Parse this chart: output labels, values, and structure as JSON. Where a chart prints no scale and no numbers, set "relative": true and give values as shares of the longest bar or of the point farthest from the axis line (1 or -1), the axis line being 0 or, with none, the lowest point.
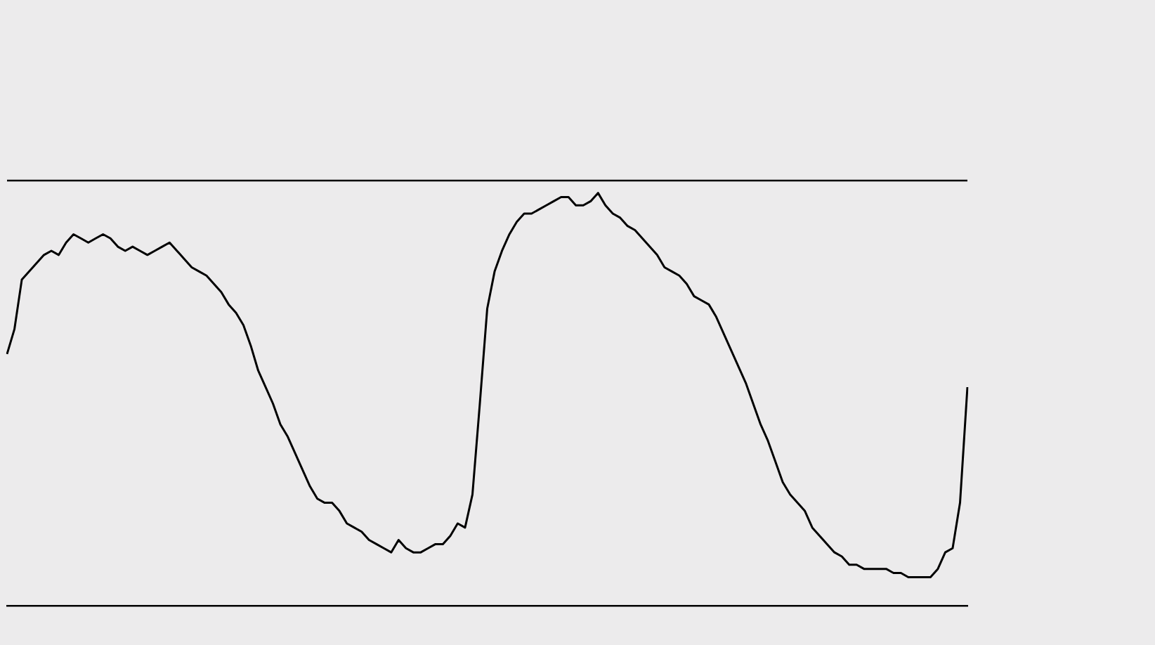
{
  "chart_data": {
    "type": "line",
    "relative": true,
    "categories": [
      null,
      null,
      null,
      null,
      null,
      null,
      null,
      null,
      null,
      null,
      null,
      null,
      null,
      null,
      null,
      null,
      null,
      null,
      null,
      null,
      null,
      null,
      null,
      null,
      null,
      null,
      null,
      null,
      null,
      null,
      null,
      null,
      null,
      null,
      null,
      null,
      null,
      null,
      null,
      null,
      null,
      null,
      null,
      null,
      null,
      null,
      null,
      null,
      null,
      null,
      null,
      null,
      null,
      null,
      null,
      null,
      null,
      null,
      null,
      null,
      null,
      null,
      null,
      null,
      null,
      null,
      null,
      null,
      null,
      null,
      null,
      null,
      null,
      null,
      null,
      null,
      null,
      null,
      null,
      null,
      null,
      null,
      null,
      null,
      null,
      null,
      null,
      null,
      null,
      null,
      null,
      null,
      null,
      null,
      null,
      null,
      null,
      null,
      null,
      null,
      null,
      null,
      null,
      null,
      null,
      null,
      null,
      null,
      null,
      null,
      null,
      null,
      null,
      null,
      null,
      null,
      null,
      null,
      null,
      null,
      null,
      null,
      null,
      null,
      null,
      null,
      null,
      null,
      null,
      null,
      null
    ],
    "series": [
      {
        "color": "#000000",
        "values": [
          0.61,
          0.67,
          0.79,
          0.81,
          0.83,
          0.85,
          0.86,
          0.85,
          0.88,
          0.9,
          0.89,
          0.88,
          0.89,
          0.9,
          0.89,
          0.87,
          0.86,
          0.87,
          0.86,
          0.85,
          0.86,
          0.87,
          0.88,
          0.86,
          0.84,
          0.82,
          0.81,
          0.8,
          0.78,
          0.76,
          0.73,
          0.71,
          0.68,
          0.63,
          0.57,
          0.53,
          0.49,
          0.44,
          0.41,
          0.37,
          0.33,
          0.29,
          0.26,
          0.25,
          0.25,
          0.23,
          0.2,
          0.19,
          0.18,
          0.16,
          0.15,
          0.14,
          0.13,
          0.16,
          0.14,
          0.13,
          0.13,
          0.14,
          0.15,
          0.15,
          0.17,
          0.2,
          0.19,
          0.27,
          0.49,
          0.72,
          0.81,
          0.86,
          0.9,
          0.93,
          0.95,
          0.95,
          0.96,
          0.97,
          0.98,
          0.99,
          0.99,
          0.97,
          0.97,
          0.98,
          1,
          0.97,
          0.95,
          0.94,
          0.92,
          0.91,
          0.89,
          0.87,
          0.85,
          0.82,
          0.81,
          0.8,
          0.78,
          0.75,
          0.74,
          0.73,
          0.7,
          0.66,
          0.62,
          0.58,
          0.54,
          0.49,
          0.44,
          0.4,
          0.35,
          0.3,
          0.27,
          0.25,
          0.23,
          0.19,
          0.17,
          0.15,
          0.13,
          0.12,
          0.1,
          0.1,
          0.09,
          0.09,
          0.09,
          0.09,
          0.08,
          0.08,
          0.07,
          0.07,
          0.07,
          0.07,
          0.09,
          0.13,
          0.14,
          0.25,
          0.53
        ]
      }
    ],
    "ref_lines": [
      {
        "axis": "y",
        "value": 1.03,
        "color": "#000000"
      }
    ],
    "grid": false,
    "legend": false,
    "marker": "none",
    "line_style": "solid"
  }
}
